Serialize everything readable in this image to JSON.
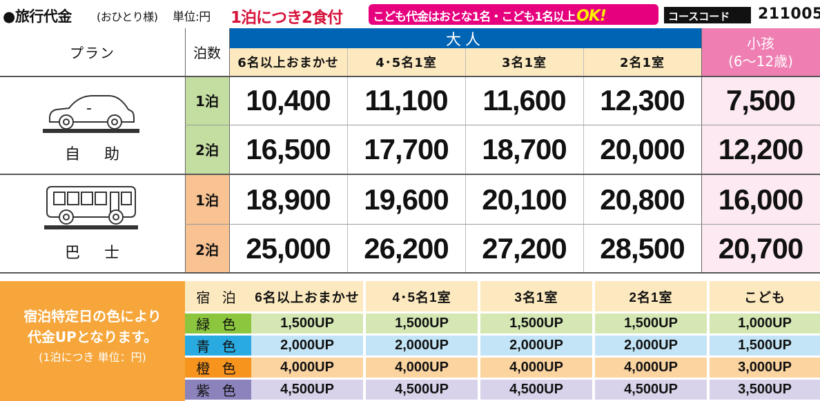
{
  "header": {
    "title": "●旅行代金",
    "subtitle": "(おひとり様)",
    "unit": "単位:円",
    "meals_note": "1泊につき2食付",
    "kids_note": "こども代金はおとな1名・こども1名以上",
    "kids_ok": "OK!",
    "course_code_label": "コースコード",
    "course_code": "211005"
  },
  "table": {
    "plan_header": "プラン",
    "nights_header": "泊数",
    "adult_header": "大人",
    "child_header_line1": "小孩",
    "child_header_line2": "(6～12歳)",
    "room_types": [
      "6名以上おまかせ",
      "4･5名1室",
      "3名1室",
      "2名1室"
    ],
    "plans": [
      {
        "name": "自 助",
        "icon": "car-icon",
        "rows": [
          {
            "nights": "1泊",
            "prices": [
              "10,400",
              "11,100",
              "11,600",
              "12,300"
            ],
            "child": "7,500"
          },
          {
            "nights": "2泊",
            "prices": [
              "16,500",
              "17,700",
              "18,700",
              "20,000"
            ],
            "child": "12,200"
          }
        ]
      },
      {
        "name": "巴 士",
        "icon": "bus-icon",
        "rows": [
          {
            "nights": "1泊",
            "prices": [
              "18,900",
              "19,600",
              "20,100",
              "20,800"
            ],
            "child": "16,000"
          },
          {
            "nights": "2泊",
            "prices": [
              "25,000",
              "26,200",
              "27,200",
              "28,500"
            ],
            "child": "20,700"
          }
        ]
      }
    ]
  },
  "surcharge": {
    "note_line1": "宿泊特定日の色により",
    "note_line2": "代金UPとなります。",
    "note_line3": "(1泊につき 単位：円)",
    "header_label": "宿 泊",
    "columns": [
      "6名以上おまかせ",
      "4･5名1室",
      "3名1室",
      "2名1室",
      "こども"
    ],
    "rows": [
      {
        "color_name": "緑 色",
        "color": "#8cc63f",
        "fill": "#d5e8b4",
        "values": [
          "1,500UP",
          "1,500UP",
          "1,500UP",
          "1,500UP",
          "1,000UP"
        ]
      },
      {
        "color_name": "青 色",
        "color": "#29abe2",
        "fill": "#c3e4f6",
        "values": [
          "2,000UP",
          "2,000UP",
          "2,000UP",
          "2,000UP",
          "1,500UP"
        ]
      },
      {
        "color_name": "橙 色",
        "color": "#f7941d",
        "fill": "#fbd49f",
        "values": [
          "4,000UP",
          "4,000UP",
          "4,000UP",
          "4,000UP",
          "3,000UP"
        ]
      },
      {
        "color_name": "紫 色",
        "color": "#8c82bc",
        "fill": "#d8d3eb",
        "values": [
          "4,500UP",
          "4,500UP",
          "4,500UP",
          "4,500UP",
          "3,500UP"
        ]
      }
    ]
  }
}
